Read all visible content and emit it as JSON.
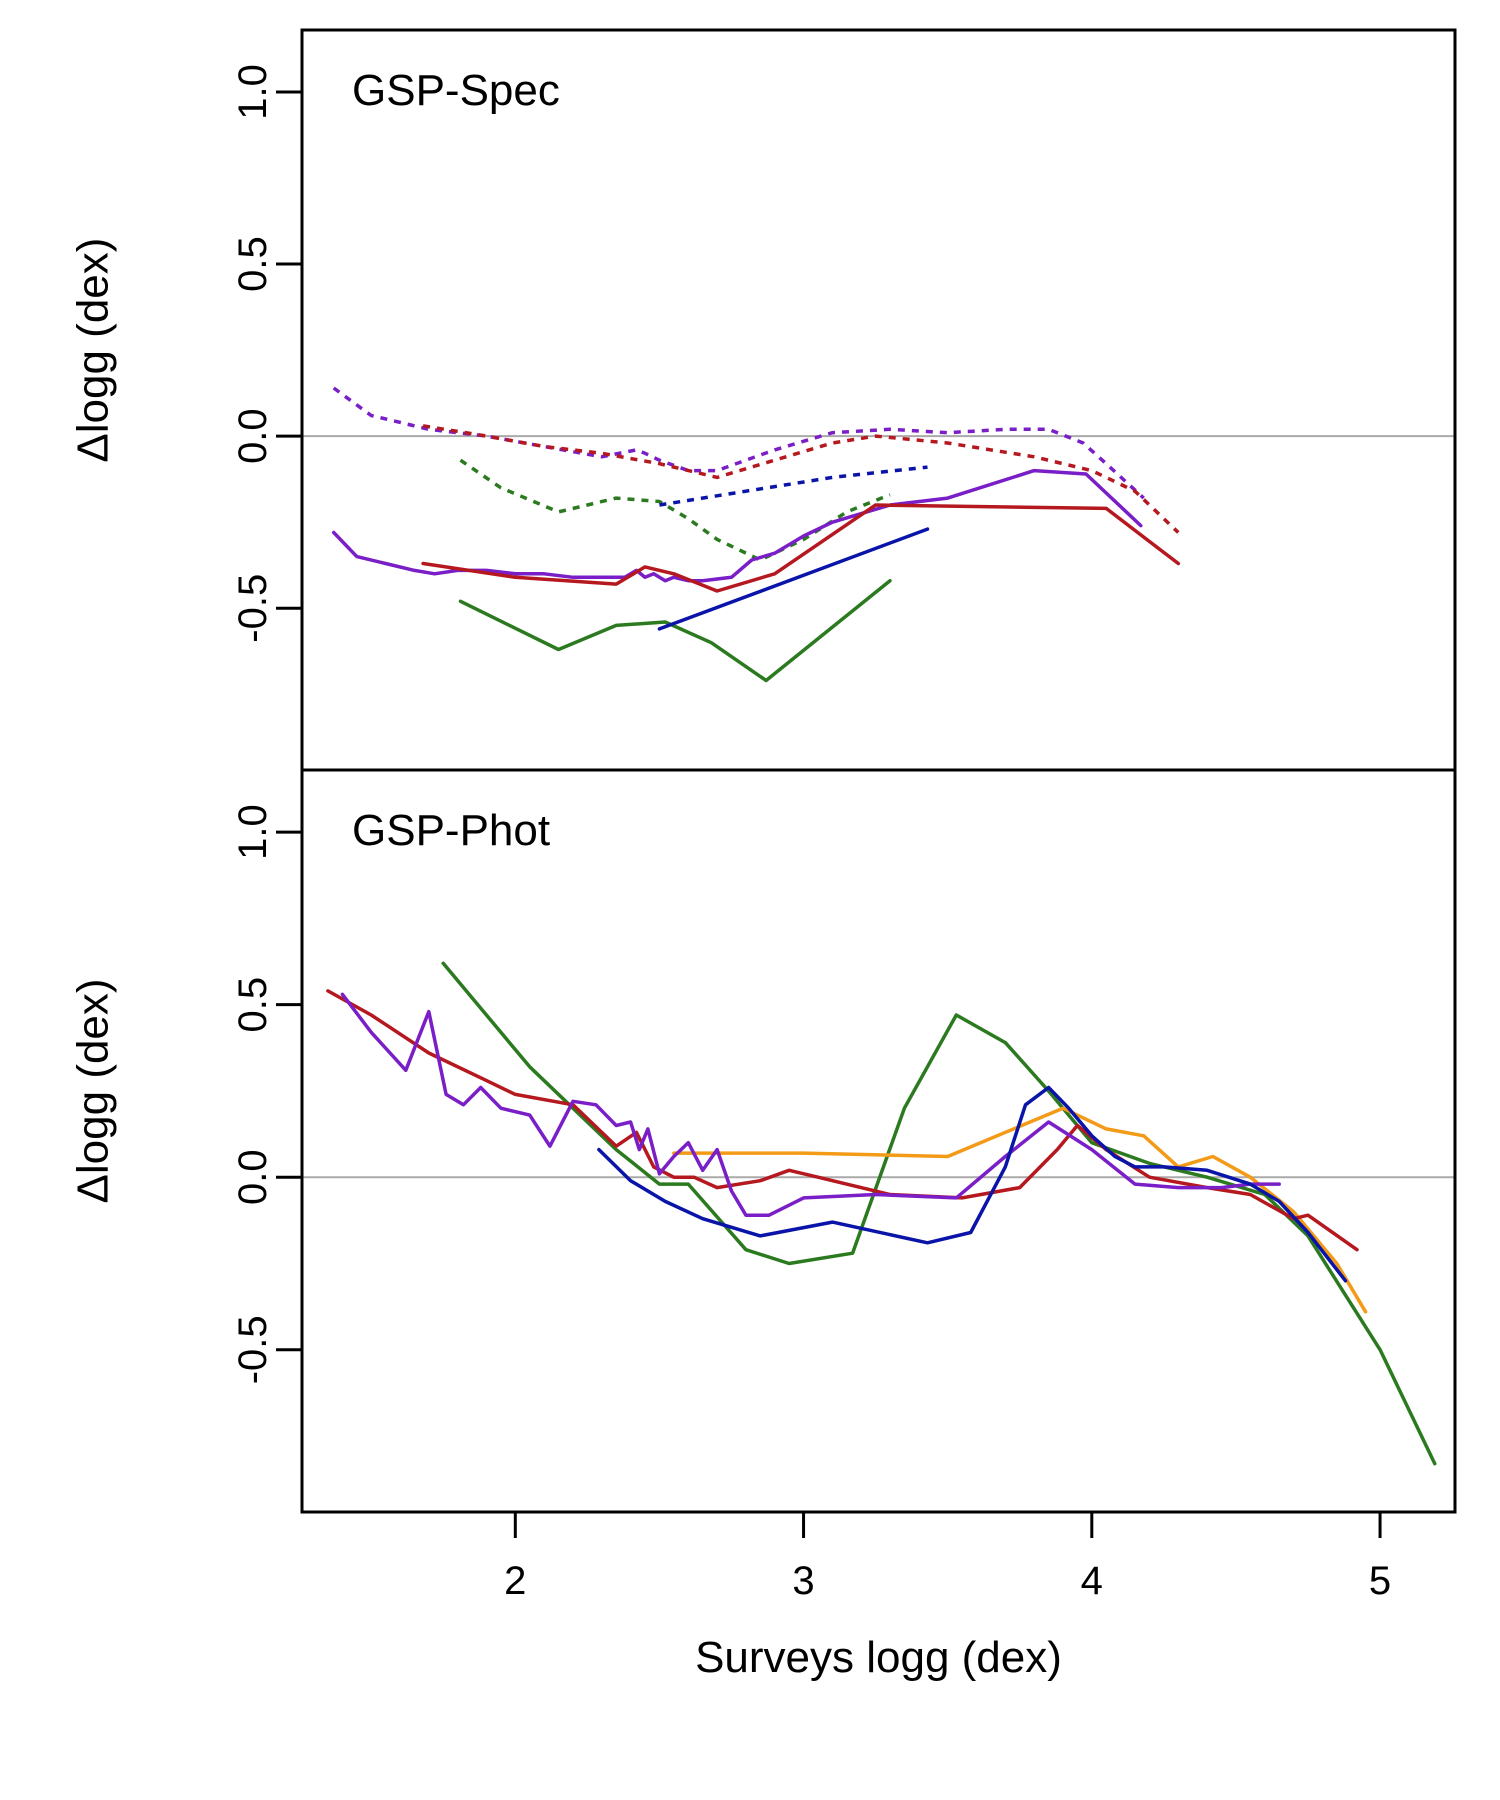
{
  "chart_data": [
    {
      "type": "line",
      "title": "GSP-Spec",
      "xlabel": "Surveys logg (dex)",
      "ylabel": "Δlogg (dex)",
      "xlim": [
        1.26,
        5.26
      ],
      "ylim": [
        -0.97,
        1.18
      ],
      "yticks": [
        -0.5,
        0.0,
        0.5,
        1.0
      ],
      "ytick_labels": [
        "-0.5",
        "0.0",
        "0.5",
        "1.0"
      ],
      "reference_line": 0.0,
      "series": [
        {
          "name": "purple-dotted",
          "color": "#7a1fc7",
          "style": "dotted",
          "x": [
            1.37,
            1.5,
            1.7,
            1.9,
            2.1,
            2.3,
            2.42,
            2.45,
            2.5,
            2.6,
            2.7,
            2.8,
            2.9,
            3.1,
            3.3,
            3.5,
            3.7,
            3.85,
            3.97,
            4.05,
            4.18
          ],
          "y": [
            0.14,
            0.06,
            0.02,
            0.0,
            -0.03,
            -0.06,
            -0.04,
            -0.05,
            -0.07,
            -0.1,
            -0.1,
            -0.07,
            -0.04,
            0.01,
            0.02,
            0.01,
            0.02,
            0.02,
            -0.02,
            -0.08,
            -0.18
          ]
        },
        {
          "name": "red-dotted",
          "color": "#b5191f",
          "style": "dotted",
          "x": [
            1.68,
            1.9,
            2.1,
            2.3,
            2.5,
            2.7,
            2.9,
            3.1,
            3.25,
            3.5,
            3.8,
            4.0,
            4.15,
            4.3
          ],
          "y": [
            0.03,
            0.0,
            -0.03,
            -0.05,
            -0.08,
            -0.12,
            -0.07,
            -0.02,
            0.0,
            -0.02,
            -0.06,
            -0.1,
            -0.16,
            -0.28
          ]
        },
        {
          "name": "green-dotted",
          "color": "#2b7a1f",
          "style": "dotted",
          "x": [
            1.81,
            1.95,
            2.15,
            2.35,
            2.5,
            2.6,
            2.7,
            2.85,
            3.0,
            3.15,
            3.3
          ],
          "y": [
            -0.07,
            -0.15,
            -0.22,
            -0.18,
            -0.19,
            -0.24,
            -0.3,
            -0.36,
            -0.3,
            -0.22,
            -0.17
          ]
        },
        {
          "name": "blue-dotted",
          "color": "#0a14a8",
          "style": "dotted",
          "x": [
            2.5,
            2.8,
            3.1,
            3.43
          ],
          "y": [
            -0.2,
            -0.16,
            -0.12,
            -0.09
          ]
        },
        {
          "name": "purple-solid",
          "color": "#7a1fc7",
          "style": "solid",
          "x": [
            1.37,
            1.45,
            1.55,
            1.65,
            1.72,
            1.8,
            1.9,
            2.0,
            2.1,
            2.2,
            2.3,
            2.38,
            2.42,
            2.45,
            2.48,
            2.52,
            2.55,
            2.6,
            2.65,
            2.75,
            2.82,
            2.9,
            3.0,
            3.1,
            3.3,
            3.5,
            3.8,
            3.98,
            4.17
          ],
          "y": [
            -0.28,
            -0.35,
            -0.37,
            -0.39,
            -0.4,
            -0.39,
            -0.39,
            -0.4,
            -0.4,
            -0.41,
            -0.41,
            -0.41,
            -0.39,
            -0.41,
            -0.4,
            -0.42,
            -0.41,
            -0.42,
            -0.42,
            -0.41,
            -0.36,
            -0.34,
            -0.29,
            -0.25,
            -0.2,
            -0.18,
            -0.1,
            -0.11,
            -0.26
          ]
        },
        {
          "name": "red-solid",
          "color": "#b5191f",
          "style": "solid",
          "x": [
            1.68,
            2.0,
            2.35,
            2.45,
            2.55,
            2.7,
            2.9,
            3.25,
            4.05,
            4.3
          ],
          "y": [
            -0.37,
            -0.41,
            -0.43,
            -0.38,
            -0.4,
            -0.45,
            -0.4,
            -0.2,
            -0.21,
            -0.37
          ]
        },
        {
          "name": "green-solid",
          "color": "#2b7a1f",
          "style": "solid",
          "x": [
            1.81,
            2.15,
            2.35,
            2.52,
            2.68,
            2.87,
            3.3
          ],
          "y": [
            -0.48,
            -0.62,
            -0.55,
            -0.54,
            -0.6,
            -0.71,
            -0.42
          ]
        },
        {
          "name": "blue-solid",
          "color": "#0a14a8",
          "style": "solid",
          "x": [
            2.5,
            3.43
          ],
          "y": [
            -0.56,
            -0.27
          ]
        }
      ]
    },
    {
      "type": "line",
      "title": "GSP-Phot",
      "xlabel": "Surveys logg (dex)",
      "ylabel": "Δlogg (dex)",
      "xlim": [
        1.26,
        5.26
      ],
      "ylim": [
        -0.97,
        1.18
      ],
      "xticks": [
        2,
        3,
        4,
        5
      ],
      "xtick_labels": [
        "2",
        "3",
        "4",
        "5"
      ],
      "yticks": [
        -0.5,
        0.0,
        0.5,
        1.0
      ],
      "ytick_labels": [
        "-0.5",
        "0.0",
        "0.5",
        "1.0"
      ],
      "reference_line": 0.0,
      "series": [
        {
          "name": "green",
          "color": "#2b7a1f",
          "style": "solid",
          "x": [
            1.75,
            2.05,
            2.35,
            2.5,
            2.6,
            2.8,
            2.95,
            3.17,
            3.35,
            3.53,
            3.7,
            3.85,
            4.0,
            4.2,
            4.4,
            4.6,
            4.75,
            5.0,
            5.19
          ],
          "y": [
            0.62,
            0.32,
            0.08,
            -0.02,
            -0.02,
            -0.21,
            -0.25,
            -0.22,
            0.2,
            0.47,
            0.39,
            0.25,
            0.1,
            0.04,
            0.0,
            -0.05,
            -0.17,
            -0.5,
            -0.83
          ]
        },
        {
          "name": "orange",
          "color": "#f39a17",
          "style": "solid",
          "x": [
            2.55,
            3.0,
            3.5,
            3.9,
            4.05,
            4.18,
            4.3,
            4.42,
            4.55,
            4.7,
            4.85,
            4.95
          ],
          "y": [
            0.07,
            0.07,
            0.06,
            0.2,
            0.14,
            0.12,
            0.03,
            0.06,
            0.0,
            -0.1,
            -0.25,
            -0.39
          ]
        },
        {
          "name": "red",
          "color": "#b5191f",
          "style": "solid",
          "x": [
            1.35,
            1.5,
            1.7,
            1.9,
            2.0,
            2.2,
            2.35,
            2.42,
            2.48,
            2.55,
            2.62,
            2.7,
            2.85,
            2.95,
            3.05,
            3.3,
            3.55,
            3.75,
            3.88,
            3.95,
            4.05,
            4.2,
            4.4,
            4.55,
            4.7,
            4.75,
            4.92
          ],
          "y": [
            0.54,
            0.47,
            0.36,
            0.28,
            0.24,
            0.21,
            0.09,
            0.13,
            0.03,
            0.0,
            0.0,
            -0.03,
            -0.01,
            0.02,
            0.0,
            -0.05,
            -0.06,
            -0.03,
            0.08,
            0.15,
            0.08,
            0.0,
            -0.03,
            -0.05,
            -0.12,
            -0.11,
            -0.21
          ]
        },
        {
          "name": "purple",
          "color": "#7a1fc7",
          "style": "solid",
          "x": [
            1.4,
            1.5,
            1.62,
            1.7,
            1.76,
            1.82,
            1.88,
            1.95,
            2.05,
            2.12,
            2.2,
            2.28,
            2.35,
            2.4,
            2.43,
            2.46,
            2.5,
            2.55,
            2.6,
            2.65,
            2.7,
            2.75,
            2.8,
            2.88,
            3.0,
            3.25,
            3.53,
            3.7,
            3.85,
            4.0,
            4.15,
            4.3,
            4.45,
            4.55,
            4.65
          ],
          "y": [
            0.53,
            0.42,
            0.31,
            0.48,
            0.24,
            0.21,
            0.26,
            0.2,
            0.18,
            0.09,
            0.22,
            0.21,
            0.15,
            0.16,
            0.08,
            0.14,
            0.01,
            0.06,
            0.1,
            0.02,
            0.08,
            -0.04,
            -0.11,
            -0.11,
            -0.06,
            -0.05,
            -0.06,
            0.06,
            0.16,
            0.08,
            -0.02,
            -0.03,
            -0.03,
            -0.02,
            -0.02
          ]
        },
        {
          "name": "blue",
          "color": "#0a14a8",
          "style": "solid",
          "x": [
            2.29,
            2.4,
            2.52,
            2.65,
            2.85,
            3.1,
            3.43,
            3.58,
            3.7,
            3.77,
            3.85,
            3.92,
            4.0,
            4.08,
            4.15,
            4.25,
            4.4,
            4.55,
            4.65,
            4.75,
            4.88
          ],
          "y": [
            0.08,
            -0.01,
            -0.07,
            -0.12,
            -0.17,
            -0.13,
            -0.19,
            -0.16,
            0.03,
            0.21,
            0.26,
            0.2,
            0.12,
            0.06,
            0.03,
            0.03,
            0.02,
            -0.02,
            -0.07,
            -0.16,
            -0.3
          ]
        }
      ]
    }
  ]
}
